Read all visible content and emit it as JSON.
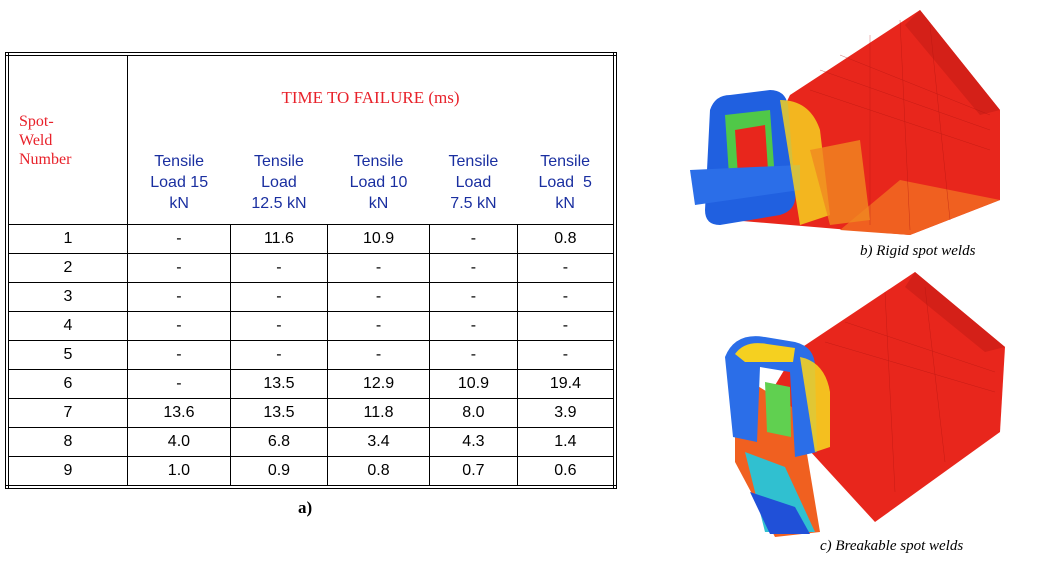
{
  "table": {
    "row_header": [
      "Spot-",
      "Weld",
      "Number"
    ],
    "group_header": "TIME TO FAILURE (ms)",
    "columns": [
      [
        "Tensile",
        "Load 15",
        "kN"
      ],
      [
        "Tensile",
        "Load",
        "12.5 kN"
      ],
      [
        "Tensile",
        "Load 10",
        "kN"
      ],
      [
        "Tensile",
        "Load",
        "7.5 kN"
      ],
      [
        "Tensile",
        "Load  5",
        "kN"
      ]
    ],
    "rows": [
      [
        "1",
        "-",
        "11.6",
        "10.9",
        "-",
        "0.8"
      ],
      [
        "2",
        "-",
        "-",
        "-",
        "-",
        "-"
      ],
      [
        "3",
        "-",
        "-",
        "-",
        "-",
        "-"
      ],
      [
        "4",
        "-",
        "-",
        "-",
        "-",
        "-"
      ],
      [
        "5",
        "-",
        "-",
        "-",
        "-",
        "-"
      ],
      [
        "6",
        "-",
        "13.5",
        "12.9",
        "10.9",
        "19.4"
      ],
      [
        "7",
        "13.6",
        "13.5",
        "11.8",
        "8.0",
        "3.9"
      ],
      [
        "8",
        "4.0",
        "6.8",
        "3.4",
        "4.3",
        "1.4"
      ],
      [
        "9",
        "1.0",
        "0.9",
        "0.8",
        "0.7",
        "0.6"
      ]
    ]
  },
  "caption_a": "a)",
  "figures": [
    {
      "caption": "b) Rigid spot welds"
    },
    {
      "caption": "c) Breakable spot welds"
    }
  ]
}
